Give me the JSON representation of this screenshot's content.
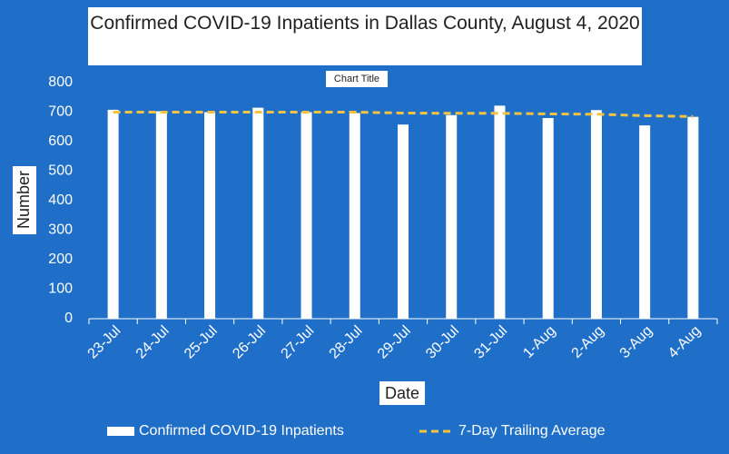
{
  "chart_data": {
    "type": "bar",
    "title": "Confirmed COVID-19 Inpatients in Dallas County, August 4, 2020",
    "subtitle": "Chart Title",
    "x_label": "Date",
    "y_label": "Number",
    "categories": [
      "23-Jul",
      "24-Jul",
      "25-Jul",
      "26-Jul",
      "27-Jul",
      "28-Jul",
      "29-Jul",
      "30-Jul",
      "31-Jul",
      "1-Aug",
      "2-Aug",
      "3-Aug",
      "4-Aug"
    ],
    "series": [
      {
        "name": "Confirmed COVID-19 Inpatients",
        "color": "#ffffff",
        "values": [
          708,
          703,
          700,
          715,
          700,
          697,
          658,
          690,
          722,
          680,
          707,
          655,
          684
        ]
      },
      {
        "name": "7-Day Trailing Average",
        "color": "#f5c342",
        "type": "line",
        "values": [
          700,
          700,
          700,
          700,
          700,
          700,
          697,
          696,
          696,
          694,
          693,
          688,
          685
        ]
      }
    ],
    "ylim": [
      0,
      800
    ],
    "yticks": [
      0,
      100,
      200,
      300,
      400,
      500,
      600,
      700,
      800
    ],
    "grid": false,
    "legend": "bottom"
  }
}
